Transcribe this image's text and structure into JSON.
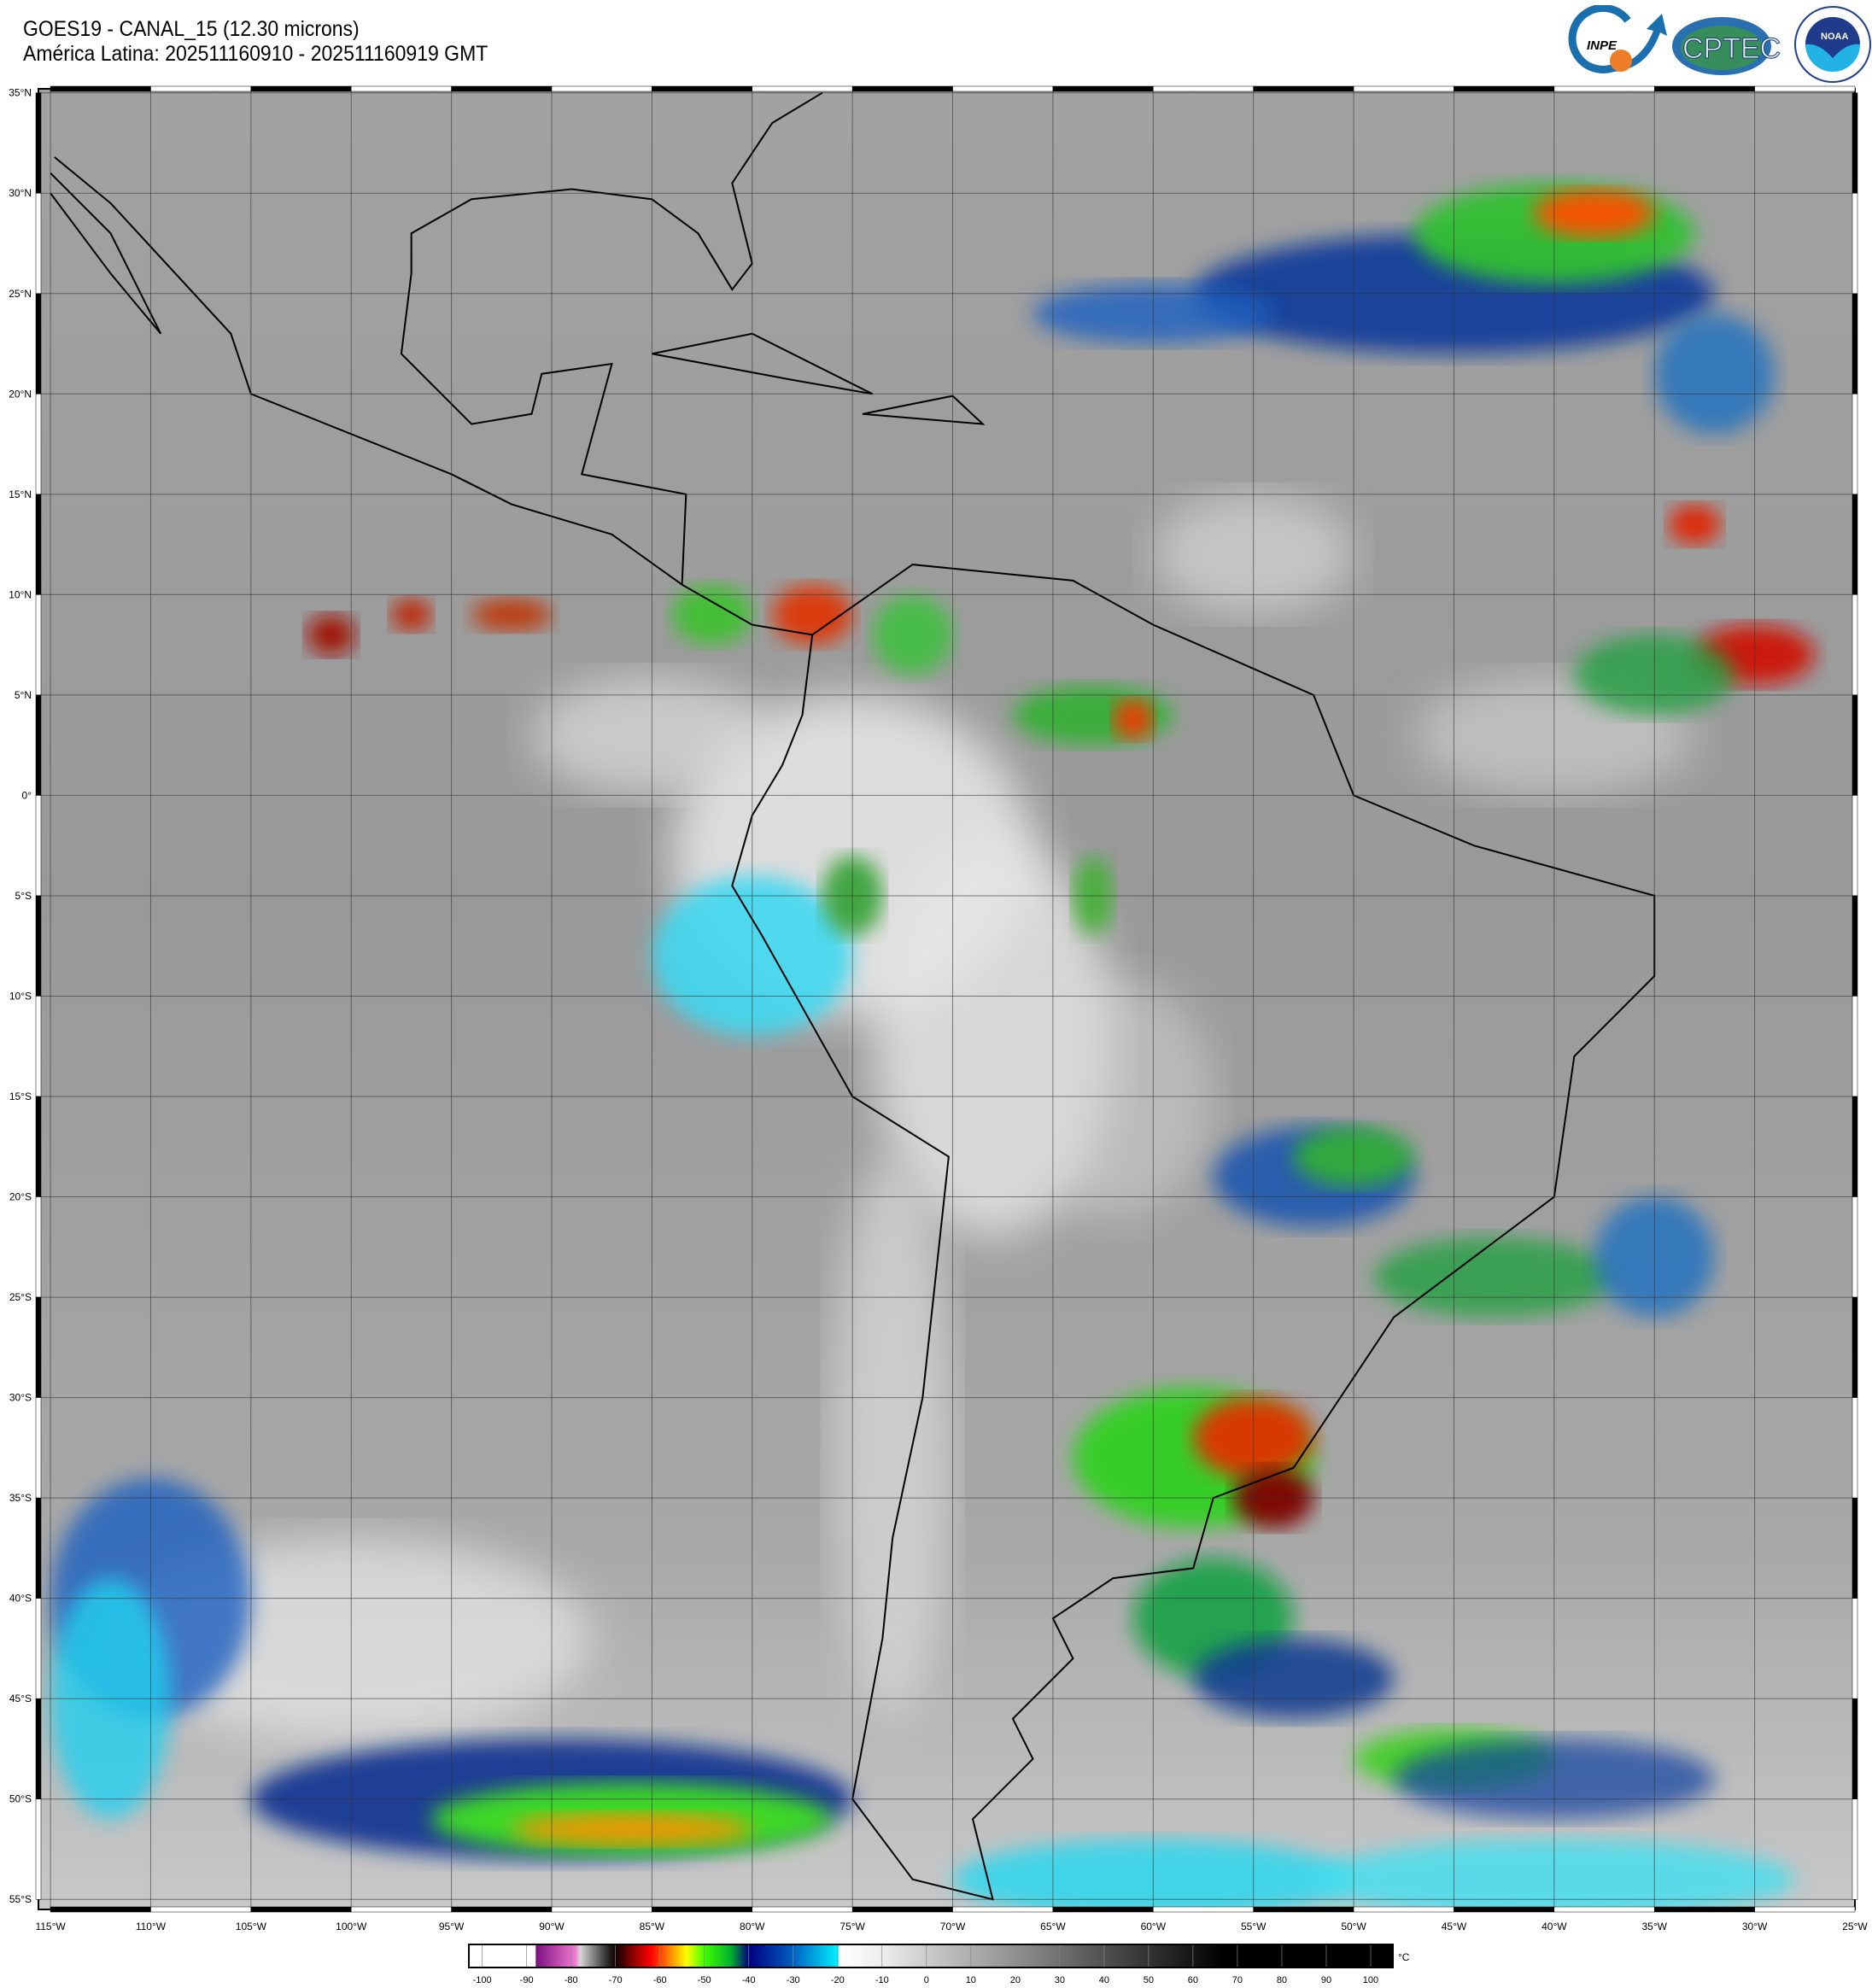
{
  "header": {
    "title": "GOES19 - CANAL_15 (12.30 microns)",
    "subtitle": "América Latina: 202511160910 - 202511160919 GMT"
  },
  "logos": {
    "inpe": "INPE",
    "cptec": "CPTEC",
    "noaa": "NOAA",
    "noaa_ring": "NATIONAL OCEANIC AND ATMOSPHERIC ADMINISTRATION · U.S. DEPARTMENT OF COMMERCE"
  },
  "map": {
    "extent": {
      "lon_min": -115.6,
      "lon_max": -25,
      "lat_max": 35.2,
      "lat_min": -55.5
    },
    "grid_step_deg": 5,
    "lat_labels": [
      "35°N",
      "30°N",
      "25°N",
      "20°N",
      "15°N",
      "10°N",
      "5°N",
      "0°",
      "5°S",
      "10°S",
      "15°S",
      "20°S",
      "25°S",
      "30°S",
      "35°S",
      "40°S",
      "45°S",
      "50°S",
      "55°S"
    ],
    "lon_labels": [
      "115°W",
      "110°W",
      "105°W",
      "100°W",
      "95°W",
      "90°W",
      "85°W",
      "80°W",
      "75°W",
      "70°W",
      "65°W",
      "60°W",
      "55°W",
      "50°W",
      "45°W",
      "40°W",
      "35°W",
      "30°W",
      "25°W"
    ]
  },
  "colorbar": {
    "unit": "°C",
    "range": [
      -103,
      105
    ],
    "ticks": [
      "-100",
      "-90",
      "-80",
      "-70",
      "-60",
      "-50",
      "-40",
      "-30",
      "-20",
      "-10",
      "0",
      "10",
      "20",
      "30",
      "40",
      "50",
      "60",
      "70",
      "80",
      "90",
      "100"
    ],
    "stops": [
      [
        -103,
        "#ffffff"
      ],
      [
        -88,
        "#ffffff"
      ],
      [
        -87.9,
        "#7a1080"
      ],
      [
        -79,
        "#f07ad0"
      ],
      [
        -78,
        "#d8d8d8"
      ],
      [
        -72,
        "#303030"
      ],
      [
        -70,
        "#100000"
      ],
      [
        -66,
        "#900000"
      ],
      [
        -62,
        "#ff0000"
      ],
      [
        -58,
        "#ff8000"
      ],
      [
        -54,
        "#ffff00"
      ],
      [
        -50,
        "#40ff00"
      ],
      [
        -44,
        "#00b030"
      ],
      [
        -40,
        "#000080"
      ],
      [
        -30,
        "#0060c0"
      ],
      [
        -20,
        "#00f0ff"
      ],
      [
        -19.5,
        "#ffffff"
      ],
      [
        -10,
        "#eeeeee"
      ],
      [
        0,
        "#cccccc"
      ],
      [
        20,
        "#909090"
      ],
      [
        40,
        "#505050"
      ],
      [
        67,
        "#000000"
      ],
      [
        105,
        "#000000"
      ]
    ]
  }
}
